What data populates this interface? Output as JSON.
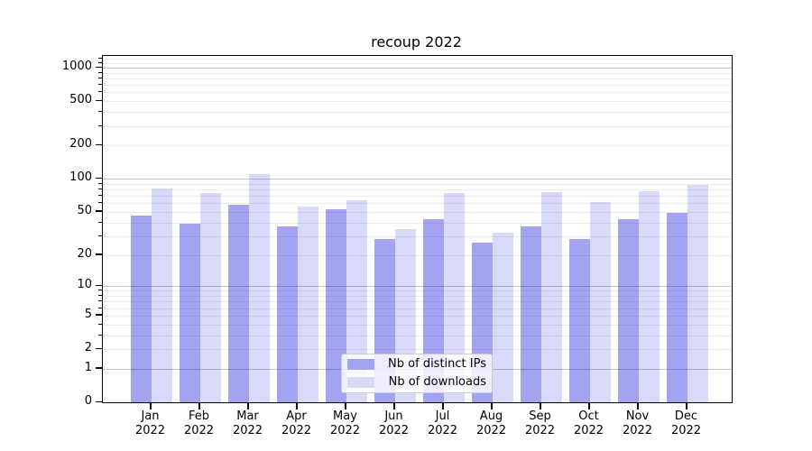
{
  "title": "recoup 2022",
  "chart_data": {
    "type": "bar",
    "title": "recoup 2022",
    "xlabel": "",
    "ylabel": "",
    "yscale": "log1p",
    "ylim": [
      0,
      1273
    ],
    "grid": true,
    "legend_position": "lower center",
    "categories": [
      [
        "Jan",
        "2022"
      ],
      [
        "Feb",
        "2022"
      ],
      [
        "Mar",
        "2022"
      ],
      [
        "Apr",
        "2022"
      ],
      [
        "May",
        "2022"
      ],
      [
        "Jun",
        "2022"
      ],
      [
        "Jul",
        "2022"
      ],
      [
        "Aug",
        "2022"
      ],
      [
        "Sep",
        "2022"
      ],
      [
        "Oct",
        "2022"
      ],
      [
        "Nov",
        "2022"
      ],
      [
        "Dec",
        "2022"
      ]
    ],
    "yticks": [
      0,
      1,
      2,
      5,
      10,
      20,
      50,
      100,
      200,
      500,
      1000
    ],
    "minor_yticks": [
      3,
      4,
      6,
      7,
      8,
      9,
      30,
      40,
      60,
      70,
      80,
      90,
      300,
      400,
      600,
      700,
      800,
      900,
      1100,
      1200
    ],
    "series": [
      {
        "name": "Nb of distinct IPs",
        "color": "rgba(0,0,220,0.36)",
        "color_hex_on_white": "#a3a3f1",
        "values": [
          46,
          39,
          58,
          37,
          53,
          28,
          43,
          26,
          37,
          28,
          43,
          49
        ]
      },
      {
        "name": "Nb of downloads",
        "color": "rgba(0,0,220,0.15)",
        "color_hex_on_white": "#d9d9fa",
        "values": [
          82,
          74,
          111,
          56,
          64,
          35,
          74,
          32,
          76,
          61,
          77,
          88
        ]
      }
    ]
  },
  "colors": {
    "background": "#ffffff",
    "spine": "#000000",
    "major_grid": "#c6c6c6",
    "minor_grid": "#ececec"
  }
}
